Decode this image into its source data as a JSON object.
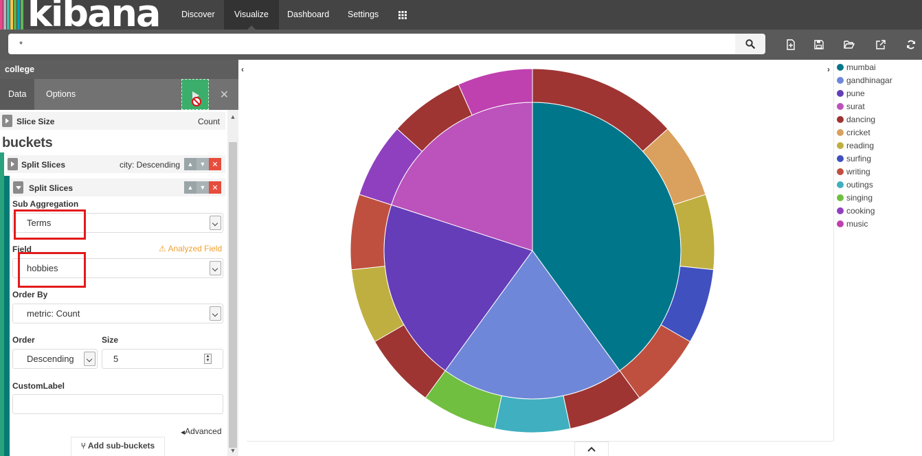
{
  "app": {
    "logo_text": "kibana",
    "logo_colors": [
      "#e8478b",
      "#b0b6b9",
      "#3ebeb0",
      "#f2c94c",
      "#5dae4b",
      "#00a0c6",
      "#5cb85c"
    ]
  },
  "nav": {
    "items": [
      "Discover",
      "Visualize",
      "Dashboard",
      "Settings"
    ],
    "active": "Visualize"
  },
  "query": {
    "value": "*"
  },
  "panel": {
    "index": "college",
    "tabs": [
      "Data",
      "Options"
    ],
    "active_tab": "Data",
    "metric": {
      "label": "Slice Size",
      "value": "Count"
    },
    "buckets_title": "buckets",
    "agg1": {
      "label": "Split Slices",
      "summary": "city: Descending"
    },
    "agg2": {
      "label": "Split Slices",
      "sub_aggregation_label": "Sub Aggregation",
      "sub_aggregation_value": "Terms",
      "field_label": "Field",
      "field_warning": "Analyzed Field",
      "field_value": "hobbies",
      "order_by_label": "Order By",
      "order_by_value": "metric: Count",
      "order_label": "Order",
      "order_value": "Descending",
      "size_label": "Size",
      "size_value": "5",
      "custom_label_label": "CustomLabel",
      "custom_label_value": "",
      "advanced_label": "Advanced"
    },
    "add_sub_buckets": "Add sub-buckets"
  },
  "legend": {
    "items": [
      {
        "label": "mumbai",
        "color": "#00768a"
      },
      {
        "label": "gandhinagar",
        "color": "#6f87d8"
      },
      {
        "label": "pune",
        "color": "#663db8"
      },
      {
        "label": "surat",
        "color": "#bc52bc"
      },
      {
        "label": "dancing",
        "color": "#9e3533"
      },
      {
        "label": "cricket",
        "color": "#daa05d"
      },
      {
        "label": "reading",
        "color": "#bfaf40"
      },
      {
        "label": "surfing",
        "color": "#4050bf"
      },
      {
        "label": "writing",
        "color": "#bf5040"
      },
      {
        "label": "outings",
        "color": "#40afbf"
      },
      {
        "label": "singing",
        "color": "#70bf40"
      },
      {
        "label": "cooking",
        "color": "#8f40bf"
      },
      {
        "label": "music",
        "color": "#bf40af"
      }
    ]
  },
  "chart_data": {
    "type": "pie",
    "inner": [
      {
        "label": "mumbai",
        "value": 6
      },
      {
        "label": "gandhinagar",
        "value": 3
      },
      {
        "label": "pune",
        "value": 3
      },
      {
        "label": "surat",
        "value": 3
      }
    ],
    "outer": [
      {
        "parent": "mumbai",
        "label": "dancing",
        "value": 2
      },
      {
        "parent": "mumbai",
        "label": "cricket",
        "value": 1
      },
      {
        "parent": "mumbai",
        "label": "reading",
        "value": 1
      },
      {
        "parent": "mumbai",
        "label": "surfing",
        "value": 1
      },
      {
        "parent": "mumbai",
        "label": "writing",
        "value": 1
      },
      {
        "parent": "gandhinagar",
        "label": "dancing",
        "value": 1
      },
      {
        "parent": "gandhinagar",
        "label": "outings",
        "value": 1
      },
      {
        "parent": "gandhinagar",
        "label": "singing",
        "value": 1
      },
      {
        "parent": "pune",
        "label": "dancing",
        "value": 1
      },
      {
        "parent": "pune",
        "label": "reading",
        "value": 1
      },
      {
        "parent": "pune",
        "label": "writing",
        "value": 1
      },
      {
        "parent": "surat",
        "label": "cooking",
        "value": 1
      },
      {
        "parent": "surat",
        "label": "dancing",
        "value": 1
      },
      {
        "parent": "surat",
        "label": "music",
        "value": 1
      }
    ]
  }
}
